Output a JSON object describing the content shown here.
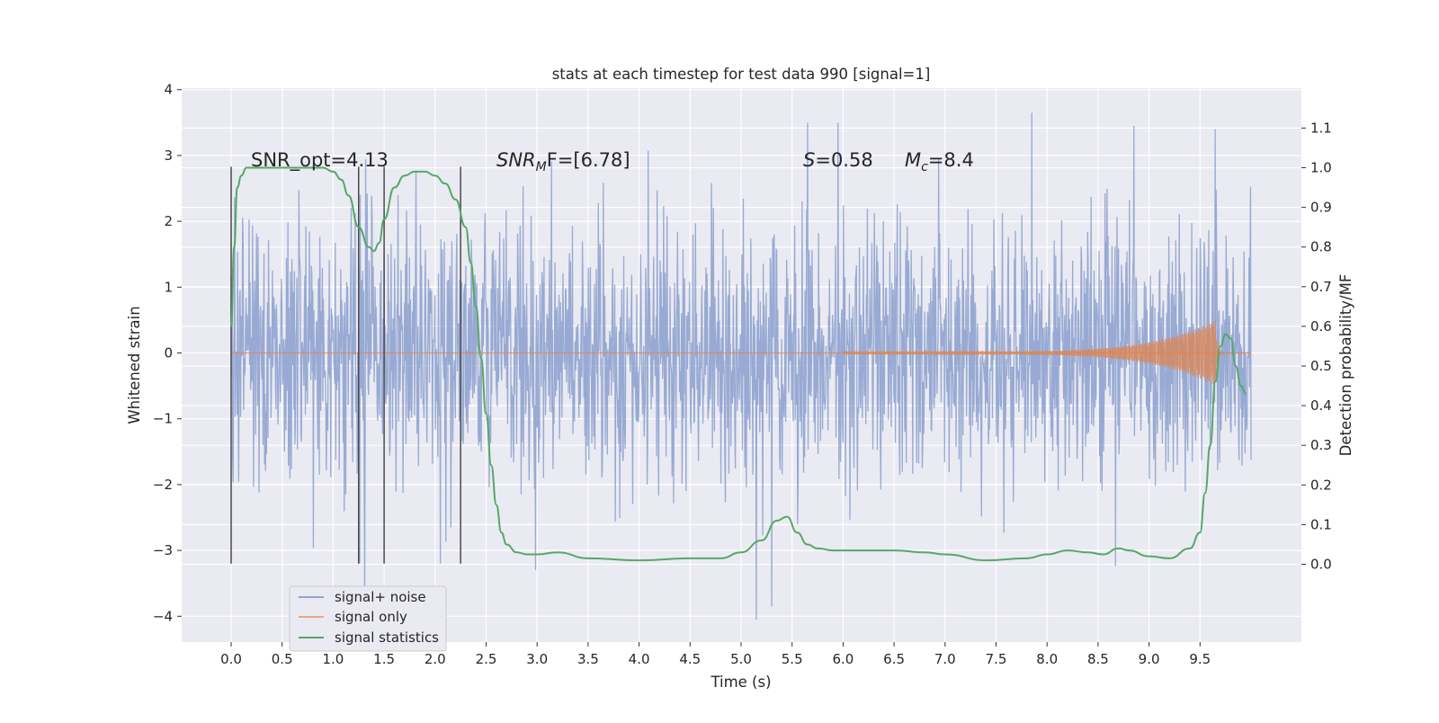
{
  "chart_data": {
    "type": "line",
    "title": "stats at each timestep for test data 990 [signal=1]",
    "xlabel": "Time (s)",
    "ylabel_left": "Whitened strain",
    "ylabel_right": "Detection probability/MF",
    "xlim": [
      -0.48,
      10.48
    ],
    "ylim_left": [
      -4.4,
      4.05
    ],
    "ylim_right": [
      -0.2,
      1.2
    ],
    "x_ticks": [
      "0.0",
      "0.5",
      "1.0",
      "1.5",
      "2.0",
      "2.5",
      "3.0",
      "3.5",
      "4.0",
      "4.5",
      "5.0",
      "5.5",
      "6.0",
      "6.5",
      "7.0",
      "7.5",
      "8.0",
      "8.5",
      "9.0",
      "9.5"
    ],
    "y_left_ticks": [
      "4",
      "3",
      "2",
      "1",
      "0",
      "−1",
      "−2",
      "−3",
      "−4"
    ],
    "y_right_ticks": [
      "1.1",
      "1.0",
      "0.9",
      "0.8",
      "0.7",
      "0.6",
      "0.5",
      "0.4",
      "0.3",
      "0.2",
      "0.1",
      "0.0"
    ],
    "grid": true,
    "legend_placement": "lower-left",
    "annotations": {
      "snr_opt": "SNR_opt=4.13",
      "snr_mf": "SNR",
      "snr_mf_sub": "M",
      "snr_mf_rest": "F=[6.78]",
      "s_var": "S",
      "s_val": "=0.58",
      "mc_var": "M",
      "mc_sub": "c",
      "mc_val": "=8.4"
    },
    "vertical_markers": [
      0.0,
      1.25,
      1.5,
      2.25
    ],
    "series": [
      {
        "name": "signal+ noise",
        "color": "#8fa3cf",
        "description_x_range": [
          0.0,
          10.0
        ],
        "typical_amplitude": 1.2,
        "envelope_peaks": [
          {
            "x": 1.26,
            "y": -3.2
          },
          {
            "x": 1.31,
            "y": -3.6
          },
          {
            "x": 2.05,
            "y": -3.2
          },
          {
            "x": 5.15,
            "y": -4.05
          },
          {
            "x": 5.3,
            "y": -3.85
          },
          {
            "x": 5.65,
            "y": 3.5
          },
          {
            "x": 5.95,
            "y": 3.5
          },
          {
            "x": 7.85,
            "y": 3.65
          },
          {
            "x": 8.85,
            "y": 3.45
          },
          {
            "x": 9.65,
            "y": 3.4
          }
        ]
      },
      {
        "name": "signal only",
        "color": "#dd8452",
        "chirp_start": 6.0,
        "chirp_peak_time": 9.65,
        "chirp_peak_amplitude": 0.5
      },
      {
        "name": "signal statistics",
        "color": "#55a868",
        "axis": "right",
        "x": [
          0.0,
          0.03,
          0.06,
          0.1,
          0.15,
          0.2,
          0.3,
          0.5,
          0.7,
          0.9,
          1.0,
          1.08,
          1.15,
          1.25,
          1.35,
          1.4,
          1.45,
          1.5,
          1.6,
          1.7,
          1.8,
          1.9,
          2.0,
          2.1,
          2.2,
          2.3,
          2.35,
          2.4,
          2.45,
          2.5,
          2.55,
          2.6,
          2.65,
          2.7,
          2.8,
          2.9,
          3.0,
          3.2,
          3.5,
          4.0,
          4.5,
          4.8,
          5.0,
          5.2,
          5.35,
          5.45,
          5.55,
          5.65,
          5.75,
          5.9,
          6.2,
          6.5,
          6.8,
          7.0,
          7.4,
          7.8,
          8.0,
          8.2,
          8.4,
          8.55,
          8.7,
          8.8,
          9.0,
          9.2,
          9.4,
          9.5,
          9.55,
          9.6,
          9.65,
          9.7,
          9.75,
          9.8,
          9.85,
          9.9,
          9.95
        ],
        "y": [
          0.6,
          0.8,
          0.95,
          0.98,
          1.0,
          1.0,
          1.0,
          1.0,
          1.0,
          1.0,
          0.99,
          0.97,
          0.93,
          0.85,
          0.8,
          0.79,
          0.81,
          0.87,
          0.95,
          0.98,
          0.99,
          0.99,
          0.98,
          0.96,
          0.92,
          0.85,
          0.76,
          0.65,
          0.52,
          0.38,
          0.25,
          0.15,
          0.08,
          0.05,
          0.03,
          0.025,
          0.025,
          0.03,
          0.015,
          0.01,
          0.015,
          0.015,
          0.03,
          0.06,
          0.11,
          0.12,
          0.08,
          0.05,
          0.04,
          0.035,
          0.035,
          0.035,
          0.03,
          0.025,
          0.01,
          0.015,
          0.025,
          0.035,
          0.03,
          0.025,
          0.04,
          0.035,
          0.02,
          0.015,
          0.04,
          0.08,
          0.18,
          0.3,
          0.46,
          0.55,
          0.58,
          0.57,
          0.5,
          0.45,
          0.43
        ]
      }
    ]
  }
}
